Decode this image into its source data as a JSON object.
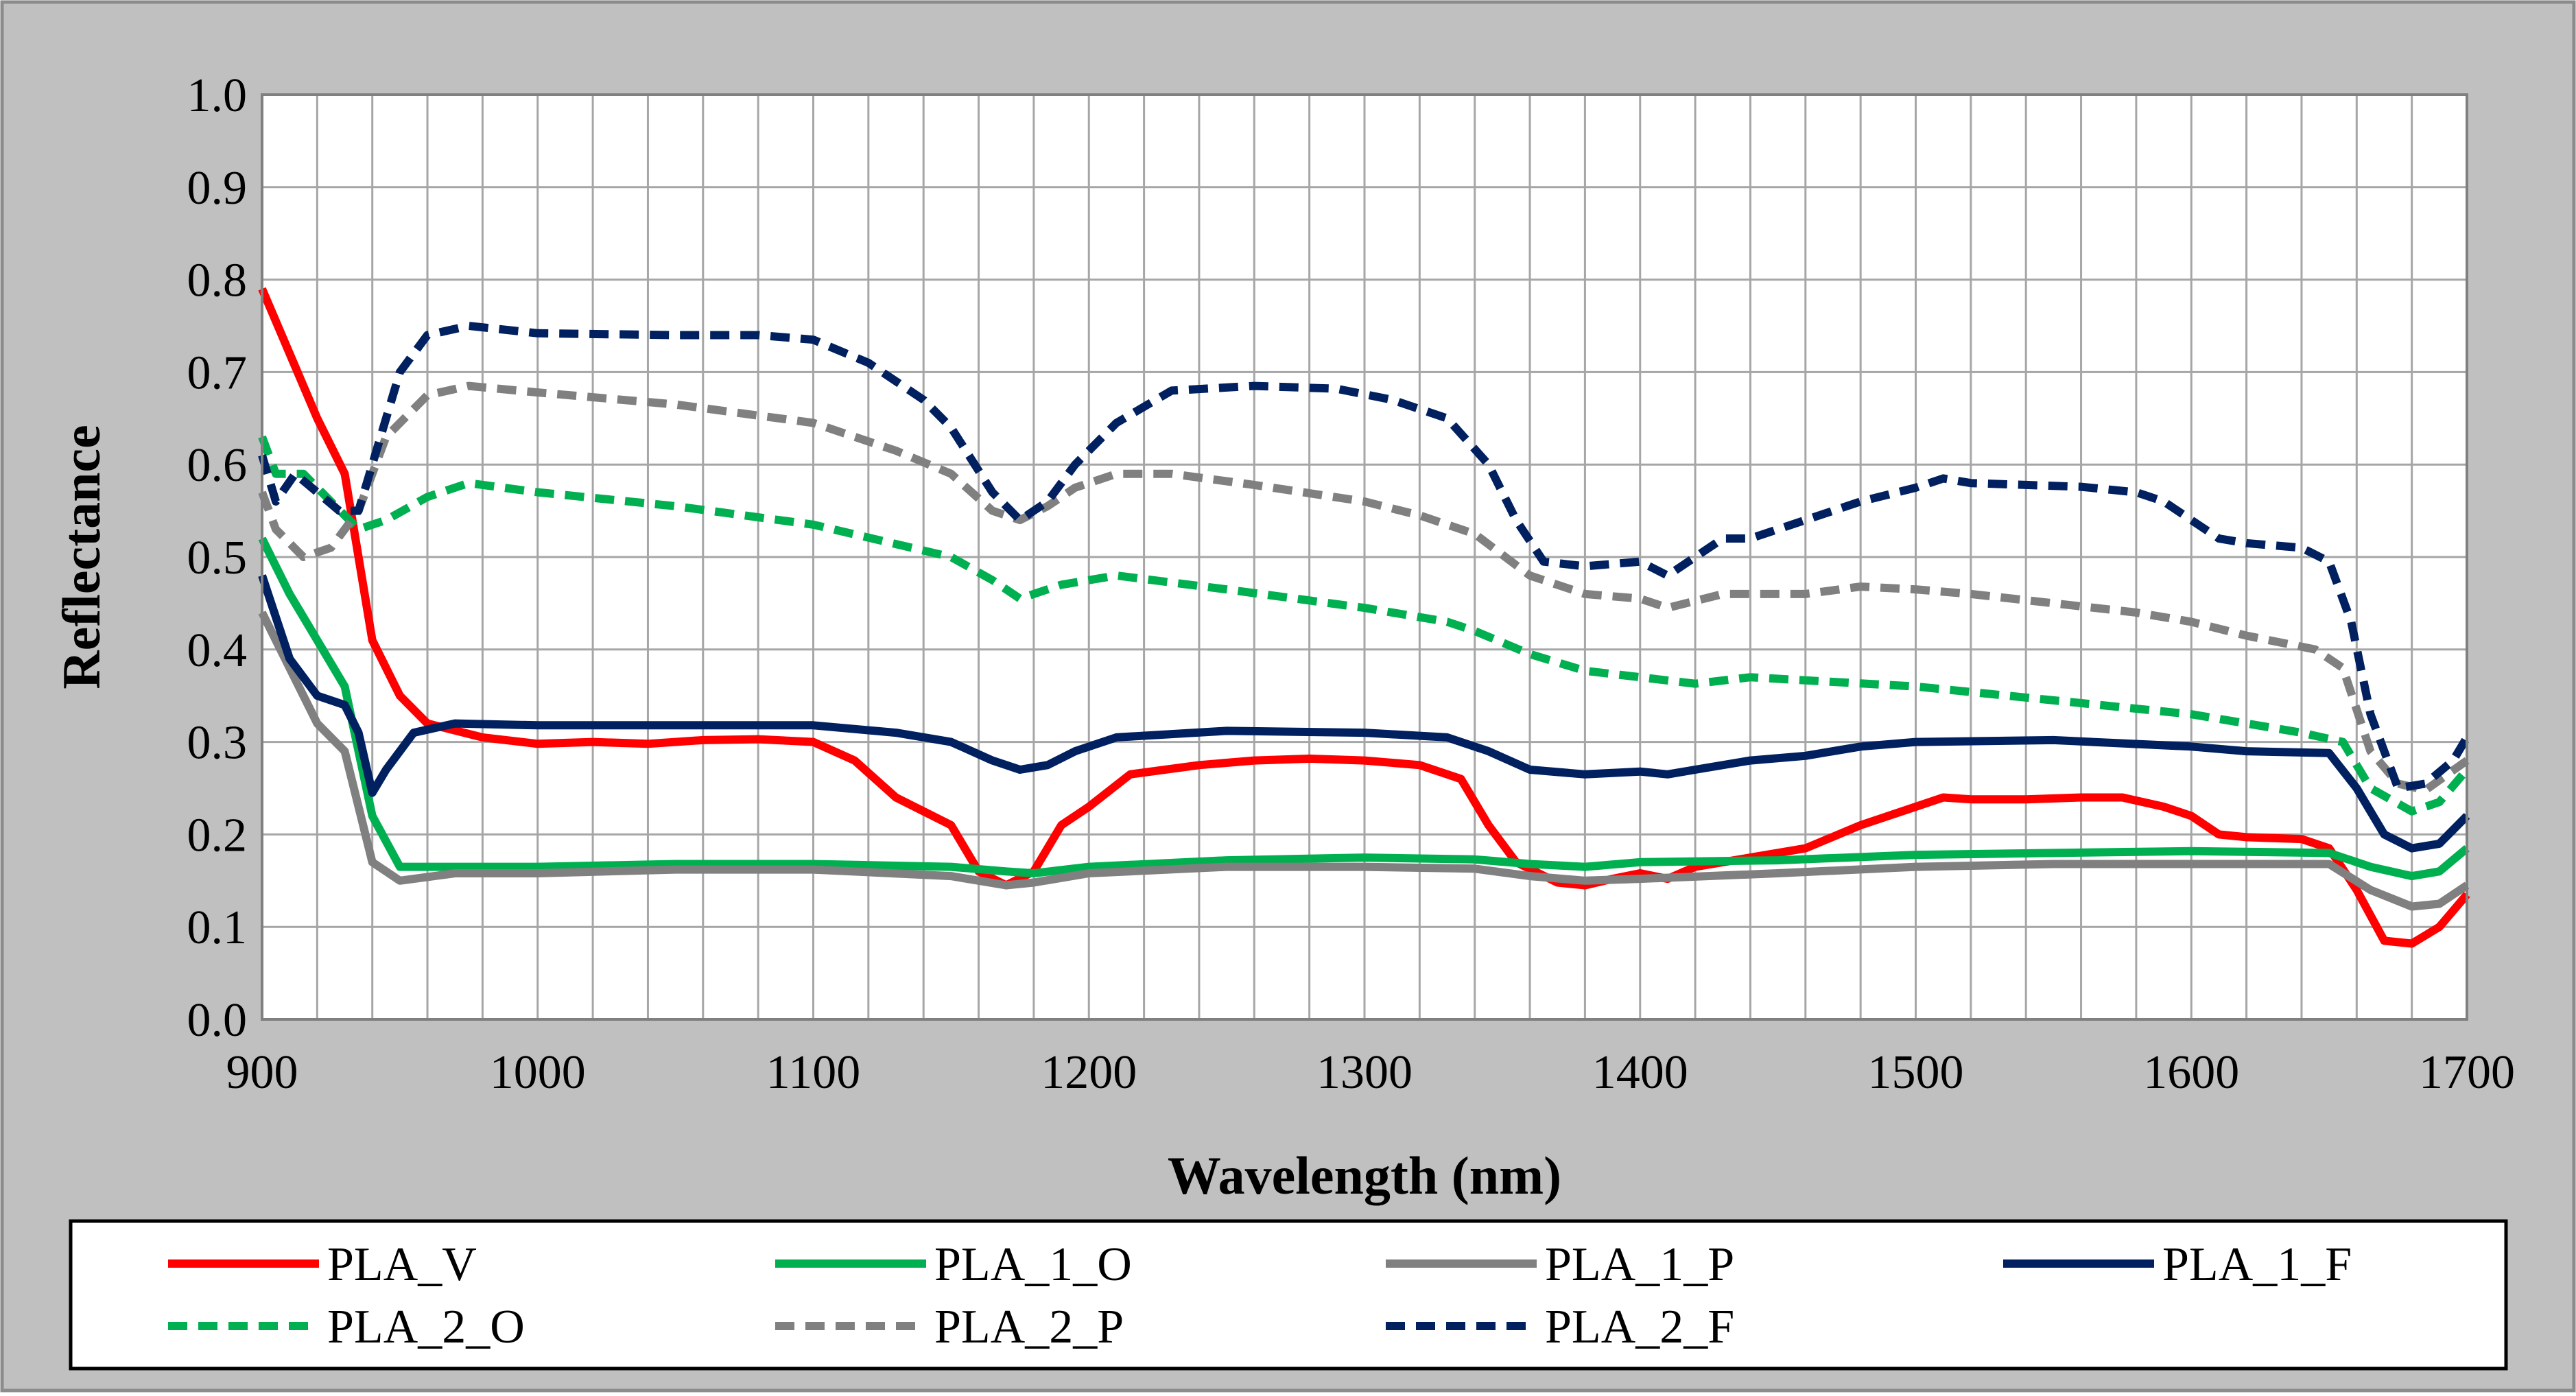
{
  "chart_data": {
    "type": "line",
    "title": "",
    "xlabel": "Wavelength (nm)",
    "ylabel": "Reflectance",
    "xlim": [
      900,
      1700
    ],
    "ylim": [
      0.0,
      1.0
    ],
    "x_ticks": [
      900,
      1000,
      1100,
      1200,
      1300,
      1400,
      1500,
      1600,
      1700
    ],
    "x_tick_labels": [
      "900",
      "1000",
      "1100",
      "1200",
      "1300",
      "1400",
      "1500",
      "1600",
      "1700"
    ],
    "y_ticks": [
      0.0,
      0.1,
      0.2,
      0.3,
      0.4,
      0.5,
      0.6,
      0.7,
      0.8,
      0.9,
      1.0
    ],
    "y_tick_labels": [
      "0.0",
      "0.1",
      "0.2",
      "0.3",
      "0.4",
      "0.5",
      "0.6",
      "0.7",
      "0.8",
      "0.9",
      "1.0"
    ],
    "grid": true,
    "legend_position": "bottom",
    "series": [
      {
        "name": "PLA_V",
        "color": "#ff0000",
        "dash": "solid",
        "x": [
          900,
          910,
          920,
          930,
          935,
          940,
          950,
          960,
          980,
          1000,
          1020,
          1040,
          1060,
          1080,
          1100,
          1115,
          1130,
          1150,
          1160,
          1170,
          1180,
          1190,
          1200,
          1215,
          1240,
          1260,
          1280,
          1300,
          1320,
          1335,
          1345,
          1355,
          1370,
          1380,
          1390,
          1400,
          1410,
          1420,
          1440,
          1460,
          1480,
          1500,
          1510,
          1520,
          1540,
          1560,
          1575,
          1590,
          1600,
          1610,
          1620,
          1640,
          1650,
          1660,
          1670,
          1680,
          1690,
          1700
        ],
        "y": [
          0.79,
          0.72,
          0.65,
          0.59,
          0.5,
          0.41,
          0.35,
          0.32,
          0.305,
          0.298,
          0.3,
          0.298,
          0.302,
          0.303,
          0.3,
          0.28,
          0.24,
          0.21,
          0.16,
          0.145,
          0.16,
          0.21,
          0.23,
          0.265,
          0.275,
          0.28,
          0.282,
          0.28,
          0.275,
          0.26,
          0.21,
          0.17,
          0.148,
          0.145,
          0.152,
          0.158,
          0.152,
          0.165,
          0.175,
          0.185,
          0.21,
          0.23,
          0.24,
          0.238,
          0.238,
          0.24,
          0.24,
          0.23,
          0.22,
          0.2,
          0.197,
          0.195,
          0.185,
          0.14,
          0.085,
          0.082,
          0.1,
          0.135
        ]
      },
      {
        "name": "PLA_1_O",
        "color": "#00b050",
        "dash": "solid",
        "x": [
          900,
          910,
          920,
          930,
          940,
          950,
          970,
          1000,
          1050,
          1100,
          1150,
          1170,
          1180,
          1200,
          1250,
          1300,
          1340,
          1360,
          1380,
          1400,
          1450,
          1500,
          1550,
          1600,
          1650,
          1665,
          1680,
          1690,
          1700
        ],
        "y": [
          0.52,
          0.46,
          0.41,
          0.36,
          0.22,
          0.165,
          0.165,
          0.165,
          0.168,
          0.168,
          0.165,
          0.16,
          0.158,
          0.165,
          0.172,
          0.175,
          0.173,
          0.168,
          0.165,
          0.17,
          0.172,
          0.178,
          0.18,
          0.182,
          0.18,
          0.165,
          0.155,
          0.16,
          0.185
        ]
      },
      {
        "name": "PLA_1_P",
        "color": "#808080",
        "dash": "solid",
        "x": [
          900,
          910,
          920,
          930,
          940,
          950,
          970,
          1000,
          1050,
          1100,
          1150,
          1170,
          1180,
          1200,
          1250,
          1300,
          1340,
          1360,
          1380,
          1400,
          1450,
          1500,
          1550,
          1600,
          1650,
          1665,
          1680,
          1690,
          1700
        ],
        "y": [
          0.44,
          0.38,
          0.32,
          0.29,
          0.17,
          0.15,
          0.158,
          0.158,
          0.162,
          0.162,
          0.155,
          0.145,
          0.148,
          0.158,
          0.165,
          0.165,
          0.163,
          0.155,
          0.15,
          0.152,
          0.158,
          0.165,
          0.168,
          0.168,
          0.168,
          0.14,
          0.122,
          0.125,
          0.145
        ]
      },
      {
        "name": "PLA_1_F",
        "color": "#002060",
        "dash": "solid",
        "x": [
          900,
          910,
          920,
          930,
          935,
          940,
          945,
          955,
          970,
          1000,
          1050,
          1100,
          1130,
          1150,
          1165,
          1175,
          1185,
          1195,
          1210,
          1250,
          1300,
          1330,
          1345,
          1360,
          1380,
          1400,
          1410,
          1420,
          1440,
          1460,
          1480,
          1500,
          1550,
          1600,
          1620,
          1650,
          1660,
          1670,
          1680,
          1690,
          1700
        ],
        "y": [
          0.48,
          0.39,
          0.35,
          0.34,
          0.31,
          0.245,
          0.27,
          0.31,
          0.32,
          0.318,
          0.318,
          0.318,
          0.31,
          0.3,
          0.28,
          0.27,
          0.275,
          0.29,
          0.305,
          0.312,
          0.31,
          0.305,
          0.29,
          0.27,
          0.265,
          0.268,
          0.265,
          0.27,
          0.28,
          0.285,
          0.295,
          0.3,
          0.302,
          0.295,
          0.29,
          0.288,
          0.25,
          0.2,
          0.185,
          0.19,
          0.22
        ]
      },
      {
        "name": "PLA_2_O",
        "color": "#00b050",
        "dash": "dashed",
        "x": [
          900,
          905,
          915,
          925,
          935,
          945,
          960,
          975,
          1000,
          1050,
          1100,
          1150,
          1165,
          1175,
          1190,
          1210,
          1250,
          1300,
          1330,
          1340,
          1360,
          1380,
          1400,
          1420,
          1440,
          1470,
          1500,
          1550,
          1600,
          1640,
          1655,
          1665,
          1680,
          1690,
          1700
        ],
        "y": [
          0.63,
          0.59,
          0.59,
          0.56,
          0.53,
          0.54,
          0.565,
          0.58,
          0.57,
          0.555,
          0.535,
          0.5,
          0.475,
          0.455,
          0.47,
          0.48,
          0.465,
          0.445,
          0.43,
          0.42,
          0.395,
          0.377,
          0.37,
          0.363,
          0.37,
          0.365,
          0.36,
          0.345,
          0.33,
          0.31,
          0.3,
          0.25,
          0.225,
          0.235,
          0.27
        ]
      },
      {
        "name": "PLA_2_P",
        "color": "#808080",
        "dash": "dashed",
        "x": [
          900,
          905,
          915,
          925,
          935,
          945,
          960,
          975,
          1000,
          1050,
          1100,
          1130,
          1150,
          1165,
          1175,
          1185,
          1195,
          1210,
          1230,
          1260,
          1300,
          1320,
          1340,
          1360,
          1380,
          1400,
          1410,
          1430,
          1460,
          1480,
          1500,
          1520,
          1550,
          1580,
          1600,
          1620,
          1645,
          1655,
          1665,
          1675,
          1685,
          1700
        ],
        "y": [
          0.57,
          0.53,
          0.5,
          0.51,
          0.55,
          0.63,
          0.675,
          0.685,
          0.678,
          0.665,
          0.645,
          0.615,
          0.59,
          0.55,
          0.54,
          0.555,
          0.575,
          0.59,
          0.59,
          0.578,
          0.56,
          0.545,
          0.525,
          0.48,
          0.46,
          0.455,
          0.445,
          0.46,
          0.46,
          0.468,
          0.465,
          0.46,
          0.45,
          0.44,
          0.43,
          0.415,
          0.4,
          0.38,
          0.29,
          0.255,
          0.248,
          0.28
        ]
      },
      {
        "name": "PLA_2_F",
        "color": "#002060",
        "dash": "dashed",
        "x": [
          900,
          905,
          912,
          920,
          928,
          935,
          940,
          950,
          960,
          975,
          1000,
          1050,
          1080,
          1100,
          1120,
          1140,
          1150,
          1165,
          1175,
          1185,
          1195,
          1210,
          1230,
          1260,
          1290,
          1310,
          1330,
          1345,
          1355,
          1365,
          1380,
          1400,
          1410,
          1420,
          1430,
          1440,
          1460,
          1480,
          1500,
          1510,
          1520,
          1540,
          1560,
          1580,
          1590,
          1600,
          1610,
          1620,
          1640,
          1650,
          1658,
          1665,
          1675,
          1685,
          1695,
          1700
        ],
        "y": [
          0.61,
          0.56,
          0.59,
          0.57,
          0.55,
          0.55,
          0.6,
          0.7,
          0.74,
          0.75,
          0.742,
          0.74,
          0.74,
          0.735,
          0.71,
          0.67,
          0.64,
          0.57,
          0.54,
          0.56,
          0.6,
          0.645,
          0.68,
          0.685,
          0.682,
          0.67,
          0.65,
          0.6,
          0.54,
          0.495,
          0.49,
          0.495,
          0.48,
          0.5,
          0.52,
          0.52,
          0.54,
          0.56,
          0.575,
          0.585,
          0.58,
          0.578,
          0.576,
          0.57,
          0.56,
          0.54,
          0.52,
          0.515,
          0.51,
          0.495,
          0.43,
          0.33,
          0.25,
          0.255,
          0.28,
          0.305
        ]
      }
    ]
  }
}
